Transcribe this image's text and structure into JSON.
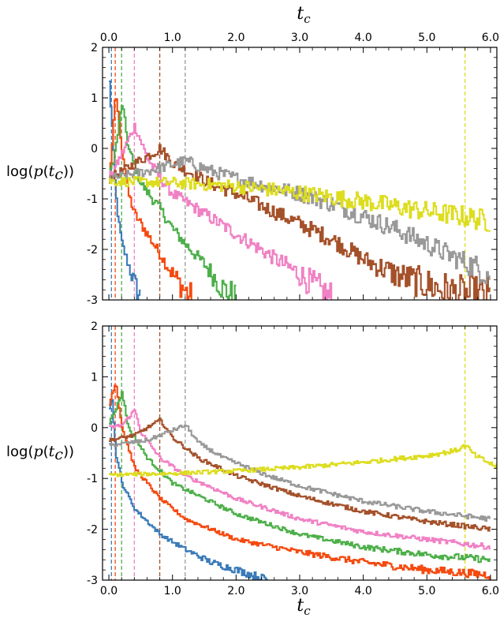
{
  "chart_data": {
    "type": "line",
    "x_axis": {
      "label_base": "t",
      "label_sub": "c",
      "xlim": [
        -0.1,
        6.1
      ],
      "ticks": [
        0.0,
        1.0,
        2.0,
        3.0,
        4.0,
        5.0,
        6.0
      ],
      "tick_labels": [
        "0.0",
        "1.0",
        "2.0",
        "3.0",
        "4.0",
        "5.0",
        "6.0"
      ]
    },
    "y_axis": {
      "label_prefix": "log(",
      "label_func": "p",
      "label_base": "t",
      "label_sub": "c",
      "label_suffix": "))",
      "ylim": [
        -3,
        2
      ],
      "ticks": [
        -3,
        -2,
        -1,
        0,
        1,
        2
      ],
      "tick_labels": [
        "-3",
        "-2",
        "-1",
        "0",
        "1",
        "2"
      ]
    },
    "colors": {
      "blue": "#3a7bb8",
      "red": "#f44a10",
      "green": "#4daf4a",
      "pink": "#f081c4",
      "brown": "#a4512a",
      "gray": "#999999",
      "yellow": "#dddd20"
    },
    "dashed_peak_lines_x": [
      0.04,
      0.1,
      0.2,
      0.4,
      0.8,
      1.2,
      5.6
    ],
    "panels": [
      {
        "position": "top",
        "series": [
          {
            "color": "blue",
            "x": [
              0.0,
              0.05,
              0.08,
              0.1,
              0.15,
              0.2,
              0.3,
              0.4,
              0.5
            ],
            "y": [
              1.3,
              0.3,
              -0.5,
              -0.9,
              -1.5,
              -1.9,
              -2.3,
              -2.7,
              -3.0
            ]
          },
          {
            "color": "red",
            "x": [
              0.0,
              0.05,
              0.1,
              0.2,
              0.3,
              0.4,
              0.6,
              0.8,
              1.0,
              1.3
            ],
            "y": [
              -0.6,
              0.2,
              1.1,
              0.0,
              -0.9,
              -1.3,
              -1.7,
              -2.1,
              -2.5,
              -3.0
            ]
          },
          {
            "color": "green",
            "x": [
              0.0,
              0.1,
              0.2,
              0.3,
              0.5,
              0.8,
              1.0,
              1.2,
              1.5,
              1.8,
              2.0
            ],
            "y": [
              -0.6,
              0.0,
              0.9,
              0.0,
              -0.7,
              -1.2,
              -1.6,
              -1.9,
              -2.3,
              -2.8,
              -3.0
            ]
          },
          {
            "color": "pink",
            "x": [
              0.0,
              0.2,
              0.4,
              0.6,
              0.8,
              1.0,
              1.5,
              2.0,
              2.5,
              3.0,
              3.3,
              3.5
            ],
            "y": [
              -0.6,
              -0.1,
              0.45,
              -0.2,
              -0.6,
              -0.9,
              -1.3,
              -1.7,
              -2.1,
              -2.5,
              -2.8,
              -3.0
            ]
          },
          {
            "color": "brown",
            "x": [
              0.0,
              0.4,
              0.8,
              1.0,
              1.3,
              1.6,
              2.0,
              2.5,
              3.0,
              3.5,
              4.0,
              4.5,
              5.0,
              5.5,
              6.0
            ],
            "y": [
              -0.6,
              -0.3,
              0.0,
              -0.3,
              -0.5,
              -0.7,
              -0.9,
              -1.2,
              -1.5,
              -1.8,
              -2.2,
              -2.5,
              -2.7,
              -2.9,
              -2.95
            ]
          },
          {
            "color": "gray",
            "x": [
              0.0,
              0.6,
              1.2,
              1.6,
              2.0,
              2.5,
              3.0,
              3.5,
              4.0,
              4.5,
              5.0,
              5.5,
              6.0
            ],
            "y": [
              -0.6,
              -0.45,
              -0.25,
              -0.45,
              -0.6,
              -0.75,
              -0.9,
              -1.1,
              -1.35,
              -1.6,
              -1.9,
              -2.2,
              -2.5
            ]
          },
          {
            "color": "yellow",
            "x": [
              0.0,
              1.0,
              2.0,
              3.0,
              4.0,
              5.0,
              5.6,
              6.0
            ],
            "y": [
              -0.65,
              -0.68,
              -0.75,
              -0.88,
              -1.05,
              -1.25,
              -1.35,
              -1.45
            ]
          }
        ]
      },
      {
        "position": "bottom",
        "series": [
          {
            "color": "blue",
            "x": [
              0.0,
              0.04,
              0.1,
              0.2,
              0.4,
              0.8,
              1.2,
              1.6,
              2.0,
              2.3,
              2.5
            ],
            "y": [
              0.4,
              0.6,
              -0.5,
              -1.1,
              -1.6,
              -2.1,
              -2.4,
              -2.65,
              -2.8,
              -2.92,
              -3.0
            ]
          },
          {
            "color": "red",
            "x": [
              0.0,
              0.05,
              0.1,
              0.2,
              0.4,
              0.8,
              1.2,
              2.0,
              3.0,
              4.0,
              5.0,
              6.0
            ],
            "y": [
              0.45,
              0.7,
              0.9,
              0.0,
              -0.8,
              -1.4,
              -1.8,
              -2.2,
              -2.45,
              -2.65,
              -2.8,
              -2.9
            ]
          },
          {
            "color": "green",
            "x": [
              0.0,
              0.1,
              0.2,
              0.3,
              0.6,
              1.0,
              2.0,
              3.0,
              4.0,
              5.0,
              6.0
            ],
            "y": [
              0.1,
              0.35,
              0.7,
              0.0,
              -0.6,
              -1.1,
              -1.7,
              -2.1,
              -2.35,
              -2.5,
              -2.6
            ]
          },
          {
            "color": "pink",
            "x": [
              0.0,
              0.2,
              0.4,
              0.5,
              0.8,
              1.2,
              2.0,
              3.0,
              4.0,
              5.0,
              6.0
            ],
            "y": [
              0.0,
              0.05,
              0.35,
              -0.1,
              -0.6,
              -0.95,
              -1.4,
              -1.8,
              -2.05,
              -2.2,
              -2.35
            ]
          },
          {
            "color": "brown",
            "x": [
              0.0,
              0.4,
              0.8,
              1.0,
              1.4,
              2.0,
              3.0,
              4.0,
              5.0,
              6.0
            ],
            "y": [
              -0.25,
              -0.15,
              0.15,
              -0.2,
              -0.6,
              -0.95,
              -1.35,
              -1.65,
              -1.85,
              -2.0
            ]
          },
          {
            "color": "gray",
            "x": [
              0.0,
              0.6,
              1.2,
              1.4,
              1.8,
              2.5,
              3.0,
              4.0,
              5.0,
              6.0
            ],
            "y": [
              -0.35,
              -0.25,
              0.05,
              -0.3,
              -0.6,
              -0.95,
              -1.15,
              -1.45,
              -1.65,
              -1.8
            ]
          },
          {
            "color": "yellow",
            "x": [
              0.0,
              1.0,
              2.0,
              3.0,
              4.0,
              5.0,
              5.45,
              5.6,
              5.75,
              6.1
            ],
            "y": [
              -0.93,
              -0.9,
              -0.85,
              -0.78,
              -0.68,
              -0.55,
              -0.45,
              -0.35,
              -0.55,
              -0.78
            ]
          }
        ]
      }
    ]
  }
}
